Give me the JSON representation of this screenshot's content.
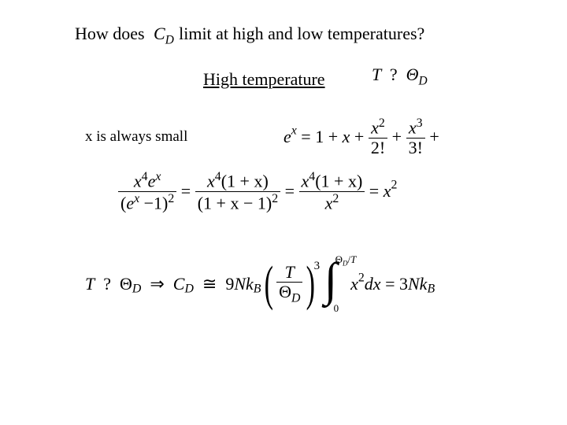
{
  "question": {
    "prefix": "How does",
    "symbol_var": "C",
    "symbol_sub": "D",
    "suffix": "limit at high and low temperatures?"
  },
  "section_title": "High temperature",
  "condition": {
    "T": "T",
    "rel": "?",
    "theta": "Θ",
    "theta_sub": "D"
  },
  "note": "x is always small",
  "series": {
    "lhs_base": "e",
    "lhs_exp": "x",
    "eq": "=",
    "t1": "1",
    "plus": "+",
    "t2": "x",
    "f1_num": "x",
    "f1_num_exp": "2",
    "f1_den": "2!",
    "f2_num": "x",
    "f2_num_exp": "3",
    "f2_den": "3!",
    "colors": {
      "text": "#000000"
    }
  },
  "chain": {
    "f1": {
      "num_a": "x",
      "num_a_exp": "4",
      "num_b": "e",
      "num_b_exp": "x",
      "den_inner_a": "e",
      "den_inner_a_exp": "x",
      "den_minus": "−",
      "den_one": "1",
      "den_outer_exp": "2"
    },
    "eq": "=",
    "f2": {
      "num_a": "x",
      "num_a_exp": "4",
      "num_paren": "(1 + x)",
      "den_paren": "(1 + x − 1)",
      "den_exp": "2"
    },
    "f3": {
      "num_a": "x",
      "num_a_exp": "4",
      "num_paren": "(1 + x)",
      "den_a": "x",
      "den_a_exp": "2"
    },
    "rhs": {
      "x": "x",
      "exp": "2"
    }
  },
  "final": {
    "T": "T",
    "rel": "?",
    "theta": "Θ",
    "theta_sub": "D",
    "implies": "⇒",
    "C": "C",
    "C_sub": "D",
    "approx": "≅",
    "coeff": "9",
    "N": "N",
    "k": "k",
    "k_sub": "B",
    "frac_num": "T",
    "frac_den_theta": "Θ",
    "frac_den_sub": "D",
    "outer_exp": "3",
    "int_lb": "0",
    "int_ub_theta": "Θ",
    "int_ub_sub": "D",
    "int_ub_T": "T",
    "integrand_x": "x",
    "integrand_exp": "2",
    "dx": "dx",
    "eq": "=",
    "res_coeff": "3",
    "res_N": "N",
    "res_k": "k",
    "res_k_sub": "B"
  },
  "style": {
    "bg": "#ffffff",
    "fg": "#000000",
    "font": "Times New Roman",
    "question_fontsize": 22,
    "note_fontsize": 19,
    "eq_fontsize": 22
  }
}
